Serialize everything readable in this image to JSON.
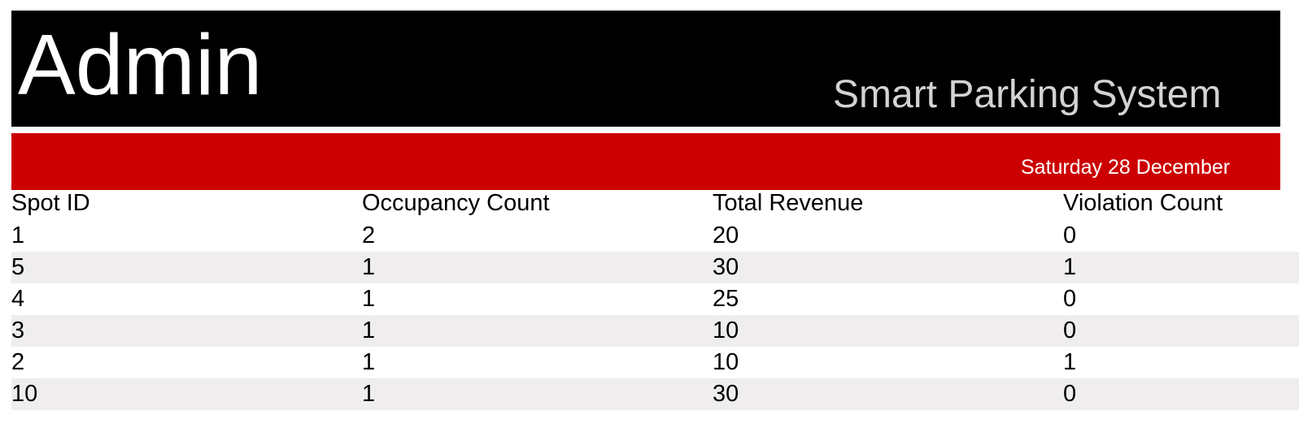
{
  "header": {
    "admin_title": "Admin",
    "system_title": "Smart Parking System"
  },
  "subheader": {
    "date": "Saturday 28 December"
  },
  "colors": {
    "header_bg": "#000000",
    "redbar_bg": "#cc0000",
    "alt_row_bg": "#efeded"
  },
  "table": {
    "columns": [
      "Spot ID",
      "Occupancy Count",
      "Total Revenue",
      "Violation Count"
    ],
    "rows": [
      [
        "1",
        "2",
        "20",
        "0"
      ],
      [
        "5",
        "1",
        "30",
        "1"
      ],
      [
        "4",
        "1",
        "25",
        "0"
      ],
      [
        "3",
        "1",
        "10",
        "0"
      ],
      [
        "2",
        "1",
        "10",
        "1"
      ],
      [
        "10",
        "1",
        "30",
        "0"
      ]
    ]
  }
}
